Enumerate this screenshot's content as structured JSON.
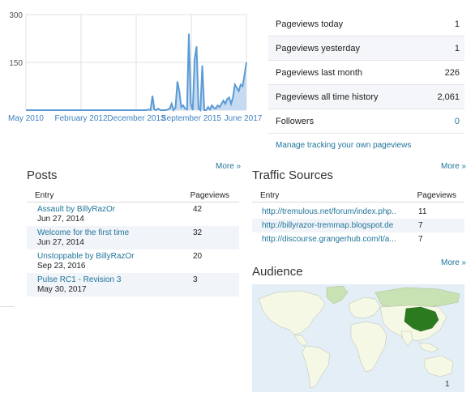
{
  "chart_data": {
    "type": "area",
    "ylim": [
      0,
      300
    ],
    "yticks": [
      300,
      150
    ],
    "xtick_labels": [
      "May 2010",
      "February 2012",
      "December 2013",
      "September 2015",
      "June 2017"
    ],
    "series": [
      {
        "values": [
          0,
          0,
          0,
          0,
          0,
          0,
          0,
          0,
          0,
          0,
          0,
          0,
          0,
          0,
          0,
          0,
          0,
          0,
          0,
          0,
          0,
          0,
          0,
          0,
          0,
          0,
          0,
          0,
          0,
          0,
          0,
          0,
          0,
          0,
          0,
          0,
          0,
          0,
          0,
          0,
          0,
          0,
          0,
          0,
          0,
          0,
          0,
          0,
          0,
          0,
          0,
          0,
          0,
          0,
          0,
          0,
          0,
          0,
          0,
          0,
          0,
          0,
          0,
          0,
          2,
          0,
          45,
          2,
          0,
          5,
          0,
          0,
          0,
          0,
          2,
          5,
          20,
          0,
          8,
          90,
          60,
          10,
          15,
          5,
          2,
          240,
          20,
          0,
          160,
          200,
          5,
          0,
          140,
          0,
          0,
          10,
          2,
          15,
          8,
          5,
          15,
          10,
          20,
          30,
          20,
          35,
          40,
          20,
          40,
          80,
          70,
          60,
          80,
          75,
          110,
          150
        ]
      }
    ],
    "colors": {
      "line": "#5b9bd5",
      "fill": "#c6dbf1",
      "grid": "#e0e0e0"
    }
  },
  "stats": [
    {
      "label": "Pageviews today",
      "value": "1"
    },
    {
      "label": "Pageviews yesterday",
      "value": "1"
    },
    {
      "label": "Pageviews last month",
      "value": "226"
    },
    {
      "label": "Pageviews all time history",
      "value": "2,061"
    },
    {
      "label": "Followers",
      "value": "0"
    }
  ],
  "manage_link": "Manage tracking your own pageviews",
  "more_label": "More »",
  "posts": {
    "title": "Posts",
    "col_entry": "Entry",
    "col_pageviews": "Pageviews",
    "rows": [
      {
        "title": "Assault by BillyRazOr",
        "date": "Jun 27, 2014",
        "views": "42"
      },
      {
        "title": "Welcome for the first time",
        "date": "Jun 27, 2014",
        "views": "32"
      },
      {
        "title": "Unstoppable by BillyRazOr",
        "date": "Sep 23, 2016",
        "views": "20"
      },
      {
        "title": "Pulse RC1 - Revision 3",
        "date": "May 30, 2017",
        "views": "3"
      }
    ]
  },
  "traffic": {
    "title": "Traffic Sources",
    "col_entry": "Entry",
    "col_pageviews": "Pageviews",
    "rows": [
      {
        "url": "http://tremulous.net/forum/index.php..",
        "views": "11"
      },
      {
        "url": "http://billyrazor-tremmap.blogspot.de",
        "views": "7"
      },
      {
        "url": "http://discourse.grangerhub.com/t/a...",
        "views": "7"
      }
    ]
  },
  "audience": {
    "title": "Audience",
    "legend_value": "1",
    "colors": {
      "ocean": "#e3eef7",
      "land": "#f6f8e6",
      "low": "#c9e2b3",
      "high": "#2b7a1f"
    }
  }
}
